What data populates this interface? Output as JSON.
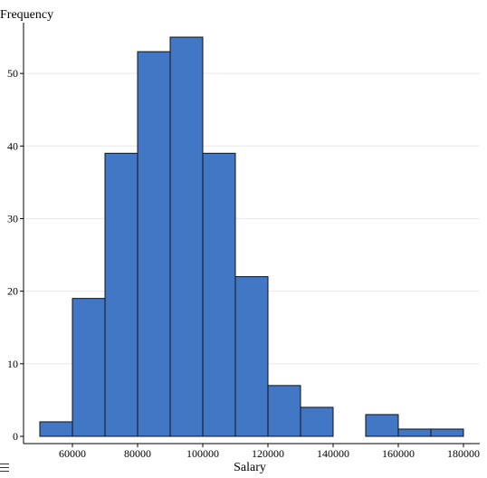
{
  "chart_data": {
    "type": "histogram",
    "title": "",
    "xlabel": "Salary",
    "ylabel": "Frequency",
    "bins": [
      {
        "start": 50000,
        "end": 60000,
        "count": 2
      },
      {
        "start": 60000,
        "end": 70000,
        "count": 19
      },
      {
        "start": 70000,
        "end": 80000,
        "count": 39
      },
      {
        "start": 80000,
        "end": 90000,
        "count": 53
      },
      {
        "start": 90000,
        "end": 100000,
        "count": 55
      },
      {
        "start": 100000,
        "end": 110000,
        "count": 39
      },
      {
        "start": 110000,
        "end": 120000,
        "count": 22
      },
      {
        "start": 120000,
        "end": 130000,
        "count": 7
      },
      {
        "start": 130000,
        "end": 140000,
        "count": 4
      },
      {
        "start": 140000,
        "end": 150000,
        "count": 0
      },
      {
        "start": 150000,
        "end": 160000,
        "count": 3
      },
      {
        "start": 160000,
        "end": 170000,
        "count": 1
      },
      {
        "start": 170000,
        "end": 180000,
        "count": 1
      }
    ],
    "xlim": [
      45000,
      185000
    ],
    "ylim": [
      -1,
      57
    ],
    "xticks": [
      60000,
      80000,
      100000,
      120000,
      140000,
      160000,
      180000
    ],
    "yticks": [
      0,
      10,
      20,
      30,
      40,
      50
    ],
    "grid": true,
    "colors": {
      "bar": "#4277c6",
      "bar_edge": "#111111",
      "grid": "#e8e8e8",
      "axis": "#000000"
    }
  },
  "ui": {
    "menu_icon": "hamburger-menu-icon"
  }
}
